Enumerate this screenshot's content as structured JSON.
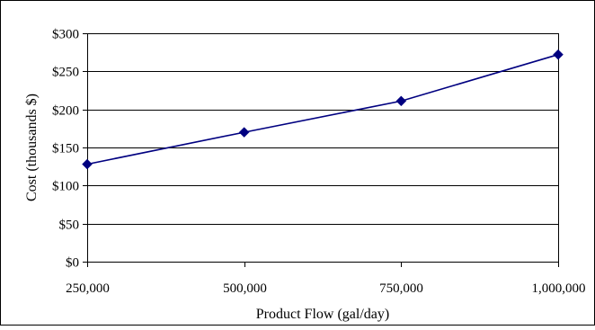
{
  "chart_data": {
    "type": "line",
    "title": "",
    "xlabel": "Product Flow (gal/day)",
    "ylabel": "Cost (thousands $)",
    "x": [
      250000,
      500000,
      750000,
      1000000
    ],
    "x_tick_labels": [
      "250,000",
      "500,000",
      "750,000",
      "1,000,000"
    ],
    "series": [
      {
        "values": [
          128,
          170,
          211,
          272
        ],
        "color": "#000080",
        "marker": "diamond"
      }
    ],
    "y_ticks": [
      0,
      50,
      100,
      150,
      200,
      250,
      300
    ],
    "y_tick_labels": [
      "$0",
      "$50",
      "$100",
      "$150",
      "$200",
      "$250",
      "$300"
    ],
    "ylim": [
      0,
      300
    ],
    "xlim": [
      250000,
      1000000
    ],
    "grid": "horizontal",
    "legend": "none",
    "colors": {
      "line": "#000080",
      "gridline": "#000000",
      "frame": "#000000"
    }
  }
}
